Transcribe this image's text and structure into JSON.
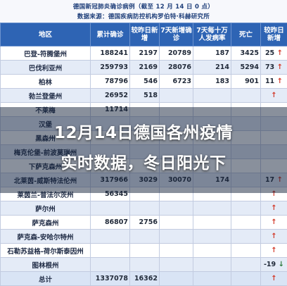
{
  "header": {
    "line1": "德国新冠肺炎确诊病例（截至 12 月 14 日 0 点）",
    "line2": "数据来源：德国疾病防控机构罗伯特·科赫研究所"
  },
  "columns": [
    "地区",
    "累计确诊",
    "较昨日新增",
    "7天新增确诊",
    "7天每十万人发病率",
    "死亡",
    "较昨日新增"
  ],
  "rows": [
    {
      "name": "巴登-符腾堡州",
      "total": "188241",
      "new": "2197",
      "new7": "20789",
      "rate": "187",
      "deaths": "3425",
      "dnew": "25",
      "arrow": "up"
    },
    {
      "name": "巴伐利亚州",
      "total": "259793",
      "new": "2169",
      "new7": "28076",
      "rate": "214",
      "deaths": "5294",
      "dnew": "73",
      "arrow": "up"
    },
    {
      "name": "柏林",
      "total": "78796",
      "new": "546",
      "new7": "6723",
      "rate": "183",
      "deaths": "901",
      "dnew": "11",
      "arrow": "up"
    },
    {
      "name": "勃兰登堡州",
      "total": "26952",
      "new": "518",
      "new7": "",
      "rate": "",
      "deaths": "",
      "dnew": "",
      "arrow": "up"
    },
    {
      "name": "不莱梅",
      "total": "11714",
      "new": "",
      "new7": "",
      "rate": "",
      "deaths": "",
      "dnew": "",
      "arrow": ""
    },
    {
      "name": "汉堡",
      "total": "",
      "new": "",
      "new7": "",
      "rate": "",
      "deaths": "",
      "dnew": "",
      "arrow": ""
    },
    {
      "name": "黑森州",
      "total": "",
      "new": "",
      "new7": "",
      "rate": "",
      "deaths": "",
      "dnew": "",
      "arrow": ""
    },
    {
      "name": "梅克伦堡-前波莫瑞州",
      "total": "",
      "new": "",
      "new7": "",
      "rate": "",
      "deaths": "",
      "dnew": "",
      "arrow": ""
    },
    {
      "name": "下萨克森州",
      "total": "",
      "new": "",
      "new7": "",
      "rate": "",
      "deaths": "",
      "dnew": "",
      "arrow": ""
    },
    {
      "name": "北莱茵-威斯特法伦州",
      "total": "317966",
      "new": "3029",
      "new7": "30070",
      "rate": "174",
      "deaths": "",
      "dnew": "17",
      "arrow": "up"
    },
    {
      "name": "莱茵兰-普法尔茨州",
      "total": "56345",
      "new": "",
      "new7": "",
      "rate": "",
      "deaths": "",
      "dnew": "",
      "arrow": "up"
    },
    {
      "name": "萨尔州",
      "total": "",
      "new": "",
      "new7": "",
      "rate": "",
      "deaths": "",
      "dnew": "",
      "arrow": "up"
    },
    {
      "name": "萨克森州",
      "total": "86807",
      "new": "2756",
      "new7": "",
      "rate": "",
      "deaths": "",
      "dnew": "",
      "arrow": "up"
    },
    {
      "name": "萨克森-安哈尔特州",
      "total": "",
      "new": "",
      "new7": "",
      "rate": "",
      "deaths": "",
      "dnew": "",
      "arrow": "up"
    },
    {
      "name": "石勒苏益格-荷尔斯泰因州",
      "total": "",
      "new": "",
      "new7": "",
      "rate": "",
      "deaths": "",
      "dnew": "",
      "arrow": "up"
    },
    {
      "name": "图林根州",
      "total": "",
      "new": "",
      "new7": "",
      "rate": "",
      "deaths": "",
      "dnew": "-19",
      "arrow": "down"
    }
  ],
  "total": {
    "name": "总计",
    "total": "1337078",
    "new": "16362",
    "new7": "",
    "rate": "",
    "deaths": "",
    "dnew": "",
    "arrow": "up"
  },
  "caption": {
    "line1": "12月14日德国各州疫情",
    "line2": "实时数据，冬日阳光下"
  },
  "colors": {
    "header": "#2e64b4",
    "up": "#d23a2a",
    "down": "#2c7a3c"
  }
}
